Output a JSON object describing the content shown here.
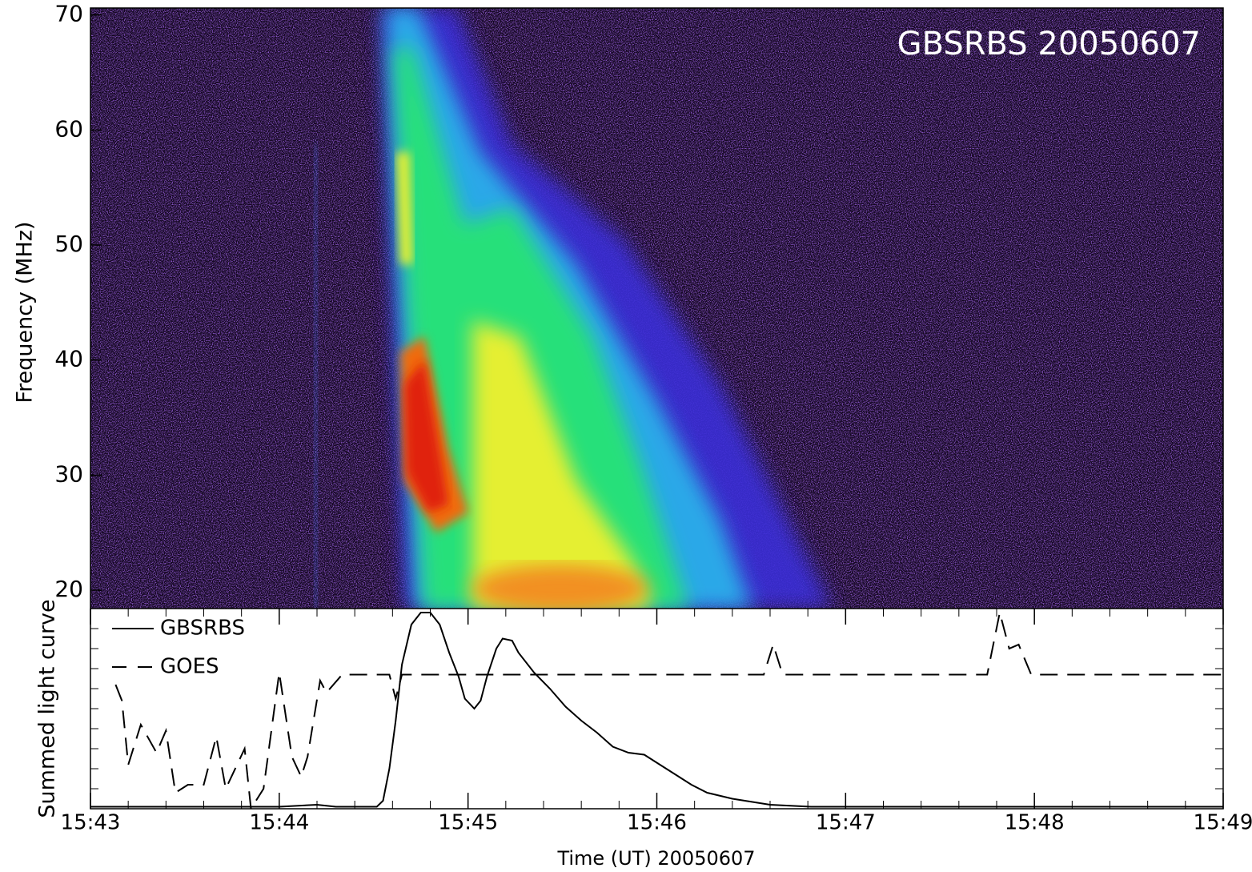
{
  "chart_data": [
    {
      "type": "spectrogram",
      "title": "GBSRBS 20050607",
      "y_label": "Frequency (MHz)",
      "ylim": [
        18.4,
        70.6
      ],
      "yticks": [
        20,
        30,
        40,
        50,
        60,
        70
      ],
      "xlim": [
        "15:43",
        "15:49"
      ]
    },
    {
      "type": "line",
      "y_label": "Summed light curve",
      "x_label": "Time (UT) 20050607",
      "xlim": [
        "15:43",
        "15:49"
      ],
      "xticks": [
        "15:43",
        "15:44",
        "15:45",
        "15:46",
        "15:47",
        "15:48",
        "15:49"
      ],
      "ylim": [
        0,
        1
      ],
      "series": [
        {
          "name": "GBSRBS",
          "color": "#000000",
          "dash": "solid",
          "x": [
            "15:43:00",
            "15:44:00",
            "15:44:12",
            "15:44:18",
            "15:44:31",
            "15:44:33",
            "15:44:35",
            "15:44:37",
            "15:44:39",
            "15:44:42",
            "15:44:45",
            "15:44:48",
            "15:44:51",
            "15:44:54",
            "15:44:57",
            "15:44:59",
            "15:45:02",
            "15:45:04",
            "15:45:06",
            "15:45:09",
            "15:45:11",
            "15:45:14",
            "15:45:16",
            "15:45:21",
            "15:45:26",
            "15:45:31",
            "15:45:36",
            "15:45:41",
            "15:45:46",
            "15:45:51",
            "15:45:56",
            "15:46:01",
            "15:46:06",
            "15:46:11",
            "15:46:16",
            "15:46:24",
            "15:46:36",
            "15:46:49",
            "15:49:00"
          ],
          "values": [
            0.01,
            0.01,
            0.02,
            0.01,
            0.01,
            0.04,
            0.2,
            0.44,
            0.72,
            0.92,
            0.98,
            0.98,
            0.92,
            0.78,
            0.66,
            0.55,
            0.5,
            0.54,
            0.66,
            0.8,
            0.85,
            0.84,
            0.78,
            0.68,
            0.6,
            0.51,
            0.44,
            0.38,
            0.31,
            0.28,
            0.27,
            0.22,
            0.17,
            0.12,
            0.08,
            0.05,
            0.02,
            0.01,
            0.01
          ]
        },
        {
          "name": "GOES",
          "color": "#000000",
          "dash": "dashed",
          "x": [
            "15:43:08",
            "15:43:10",
            "15:43:12",
            "15:43:16",
            "15:43:21",
            "15:43:24",
            "15:43:27",
            "15:43:31",
            "15:43:36",
            "15:43:40",
            "15:43:43",
            "15:43:49",
            "15:43:51",
            "15:43:55",
            "15:44:00",
            "15:44:04",
            "15:44:07",
            "15:44:09",
            "15:44:13",
            "15:44:15",
            "15:44:20",
            "15:44:35",
            "15:44:37",
            "15:44:39",
            "15:46:34",
            "15:46:37",
            "15:46:40",
            "15:47:45",
            "15:47:49",
            "15:47:52",
            "15:47:55",
            "15:47:59",
            "15:49:00"
          ],
          "values": [
            0.62,
            0.54,
            0.22,
            0.42,
            0.28,
            0.39,
            0.08,
            0.12,
            0.12,
            0.36,
            0.1,
            0.3,
            0.0,
            0.1,
            0.68,
            0.26,
            0.16,
            0.26,
            0.64,
            0.58,
            0.67,
            0.67,
            0.55,
            0.67,
            0.67,
            0.82,
            0.67,
            0.67,
            0.98,
            0.8,
            0.82,
            0.67,
            0.67
          ]
        }
      ]
    }
  ]
}
